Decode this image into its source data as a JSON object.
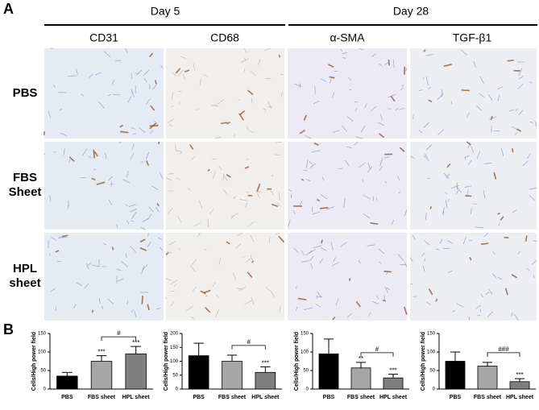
{
  "panel_a": {
    "label": "A",
    "groups": [
      "Day 5",
      "Day 28"
    ],
    "columns": [
      "CD31",
      "CD68",
      "α-SMA",
      "TGF-β1"
    ],
    "rows": [
      "PBS",
      "FBS Sheet",
      "HPL sheet"
    ]
  },
  "panel_b": {
    "label": "B"
  },
  "chart_data": [
    {
      "type": "bar",
      "ylabel": "Cells/High power field",
      "categories": [
        "PBS",
        "FBS sheet",
        "HPL sheet"
      ],
      "values": [
        35,
        75,
        95
      ],
      "errors": [
        10,
        15,
        20
      ],
      "colors": [
        "#000000",
        "#a6a6a6",
        "#7f7f7f"
      ],
      "ylim": [
        0,
        150
      ],
      "yticks": [
        0,
        50,
        100,
        150
      ],
      "annotations": [
        {
          "bar": "FBS sheet",
          "text": "***"
        },
        {
          "bar": "HPL sheet",
          "text": "***"
        },
        {
          "from": "FBS sheet",
          "to": "HPL sheet",
          "text": "#"
        }
      ]
    },
    {
      "type": "bar",
      "ylabel": "Cells/High power field",
      "categories": [
        "PBS",
        "FBS sheet",
        "HPL sheet"
      ],
      "values": [
        120,
        100,
        60
      ],
      "errors": [
        45,
        22,
        20
      ],
      "colors": [
        "#000000",
        "#a6a6a6",
        "#7f7f7f"
      ],
      "ylim": [
        0,
        200
      ],
      "yticks": [
        0,
        50,
        100,
        150,
        200
      ],
      "annotations": [
        {
          "bar": "HPL sheet",
          "text": "***"
        },
        {
          "from": "FBS sheet",
          "to": "HPL sheet",
          "text": "#"
        }
      ]
    },
    {
      "type": "bar",
      "ylabel": "Cells/High power field",
      "categories": [
        "PBS",
        "FBS sheet",
        "HPL sheet"
      ],
      "values": [
        95,
        57,
        30
      ],
      "errors": [
        40,
        15,
        10
      ],
      "colors": [
        "#000000",
        "#a6a6a6",
        "#7f7f7f"
      ],
      "ylim": [
        0,
        150
      ],
      "yticks": [
        0,
        50,
        100,
        150
      ],
      "annotations": [
        {
          "bar": "FBS sheet",
          "text": "**"
        },
        {
          "bar": "HPL sheet",
          "text": "***"
        },
        {
          "from": "FBS sheet",
          "to": "HPL sheet",
          "text": "#"
        }
      ]
    },
    {
      "type": "bar",
      "ylabel": "Cells/High power field",
      "categories": [
        "PBS",
        "FBS sheet",
        "HPL sheet"
      ],
      "values": [
        75,
        62,
        20
      ],
      "errors": [
        25,
        10,
        8
      ],
      "colors": [
        "#000000",
        "#a6a6a6",
        "#7f7f7f"
      ],
      "ylim": [
        0,
        150
      ],
      "yticks": [
        0,
        50,
        100,
        150
      ],
      "annotations": [
        {
          "bar": "HPL sheet",
          "text": "***"
        },
        {
          "from": "FBS sheet",
          "to": "HPL sheet",
          "text": "###"
        }
      ]
    }
  ]
}
